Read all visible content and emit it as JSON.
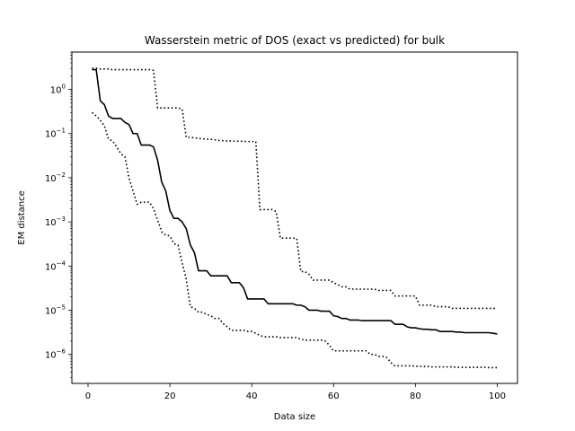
{
  "chart_data": {
    "type": "line",
    "title": "Wasserstein metric of DOS (exact vs predicted) for bulk",
    "xlabel": "Data size",
    "ylabel": "EM distance",
    "xlim": [
      -3.95,
      104.95
    ],
    "ylim": [
      2.2e-07,
      7.0
    ],
    "yscale": "log",
    "xticks": [
      0,
      20,
      40,
      60,
      80,
      100
    ],
    "xtick_labels": [
      "0",
      "20",
      "40",
      "60",
      "80",
      "100"
    ],
    "yticks": [
      1e-06,
      1e-05,
      0.0001,
      0.001,
      0.01,
      0.1,
      1.0
    ],
    "ytick_base": "10",
    "ytick_exponents": [
      "−6",
      "−5",
      "−4",
      "−3",
      "−2",
      "−1",
      "0"
    ],
    "grid": false,
    "legend": "none",
    "series": [
      {
        "style": "solid",
        "color": "#000000",
        "x": [
          1,
          2,
          3,
          4,
          5,
          6,
          7,
          8,
          9,
          10,
          11,
          12,
          13,
          14,
          15,
          16,
          17,
          18,
          19,
          20,
          21,
          22,
          23,
          24,
          25,
          26,
          27,
          28,
          29,
          30,
          31,
          32,
          33,
          34,
          35,
          36,
          37,
          38,
          39,
          40,
          41,
          42,
          43,
          44,
          45,
          46,
          47,
          48,
          49,
          50,
          51,
          52,
          53,
          54,
          55,
          56,
          57,
          58,
          59,
          60,
          61,
          62,
          63,
          64,
          65,
          66,
          67,
          68,
          69,
          70,
          71,
          72,
          73,
          74,
          75,
          76,
          77,
          78,
          79,
          80,
          81,
          82,
          83,
          84,
          85,
          86,
          87,
          88,
          89,
          90,
          91,
          92,
          93,
          94,
          95,
          96,
          97,
          98,
          99,
          100
        ],
        "y": [
          2.8,
          2.8,
          0.55,
          0.45,
          0.25,
          0.22,
          0.22,
          0.22,
          0.18,
          0.16,
          0.1,
          0.1,
          0.055,
          0.055,
          0.055,
          0.05,
          0.025,
          0.008,
          0.005,
          0.0018,
          0.0012,
          0.0012,
          0.001,
          0.0007,
          0.0003,
          0.0002,
          7.8e-05,
          7.8e-05,
          7.8e-05,
          6e-05,
          6e-05,
          6e-05,
          6e-05,
          6e-05,
          4.2e-05,
          4.2e-05,
          4.2e-05,
          3.2e-05,
          1.8e-05,
          1.8e-05,
          1.8e-05,
          1.8e-05,
          1.8e-05,
          1.4e-05,
          1.4e-05,
          1.4e-05,
          1.4e-05,
          1.4e-05,
          1.4e-05,
          1.4e-05,
          1.3e-05,
          1.3e-05,
          1.2e-05,
          1e-05,
          1e-05,
          1e-05,
          9.5e-06,
          9.5e-06,
          9.5e-06,
          7.5e-06,
          7.2e-06,
          6.5e-06,
          6.5e-06,
          6e-06,
          6e-06,
          6e-06,
          5.8e-06,
          5.8e-06,
          5.8e-06,
          5.8e-06,
          5.8e-06,
          5.8e-06,
          5.8e-06,
          5.8e-06,
          4.8e-06,
          4.8e-06,
          4.8e-06,
          4.2e-06,
          4e-06,
          4e-06,
          3.8e-06,
          3.7e-06,
          3.7e-06,
          3.6e-06,
          3.6e-06,
          3.3e-06,
          3.3e-06,
          3.3e-06,
          3.3e-06,
          3.2e-06,
          3.2e-06,
          3.1e-06,
          3.1e-06,
          3.1e-06,
          3.1e-06,
          3.1e-06,
          3.1e-06,
          3.1e-06,
          3e-06,
          2.9e-06
        ]
      },
      {
        "style": "dotted",
        "color": "#000000",
        "x": [
          1,
          2,
          3,
          4,
          5,
          6,
          7,
          8,
          9,
          10,
          11,
          12,
          13,
          14,
          15,
          16,
          17,
          18,
          19,
          20,
          21,
          22,
          23,
          24,
          25,
          26,
          27,
          28,
          29,
          30,
          31,
          32,
          33,
          34,
          35,
          36,
          37,
          38,
          39,
          40,
          41,
          42,
          43,
          44,
          45,
          46,
          47,
          48,
          49,
          50,
          51,
          52,
          53,
          54,
          55,
          56,
          57,
          58,
          59,
          60,
          61,
          62,
          63,
          64,
          65,
          66,
          67,
          68,
          69,
          70,
          71,
          72,
          73,
          74,
          75,
          76,
          77,
          78,
          79,
          80,
          81,
          82,
          83,
          84,
          85,
          86,
          87,
          88,
          89,
          90,
          91,
          92,
          93,
          94,
          95,
          96,
          97,
          98,
          99,
          100
        ],
        "y": [
          3.0,
          3.0,
          2.9,
          2.9,
          2.9,
          2.8,
          2.8,
          2.8,
          2.8,
          2.8,
          2.8,
          2.8,
          2.8,
          2.8,
          2.8,
          2.7,
          0.38,
          0.38,
          0.38,
          0.38,
          0.38,
          0.38,
          0.36,
          0.082,
          0.082,
          0.08,
          0.078,
          0.076,
          0.075,
          0.074,
          0.072,
          0.07,
          0.069,
          0.068,
          0.068,
          0.067,
          0.067,
          0.067,
          0.066,
          0.066,
          0.066,
          0.0019,
          0.0019,
          0.0019,
          0.0019,
          0.0017,
          0.00043,
          0.00043,
          0.00043,
          0.00043,
          0.00042,
          7.5e-05,
          7.5e-05,
          6.5e-05,
          4.8e-05,
          4.8e-05,
          4.8e-05,
          4.8e-05,
          4.8e-05,
          4.2e-05,
          3.8e-05,
          3.4e-05,
          3.4e-05,
          3e-05,
          3e-05,
          3e-05,
          3e-05,
          3e-05,
          3e-05,
          3e-05,
          2.8e-05,
          2.8e-05,
          2.8e-05,
          2.8e-05,
          2.1e-05,
          2.1e-05,
          2.1e-05,
          2.1e-05,
          2.1e-05,
          2.1e-05,
          1.3e-05,
          1.3e-05,
          1.3e-05,
          1.3e-05,
          1.2e-05,
          1.2e-05,
          1.2e-05,
          1.2e-05,
          1.1e-05,
          1.1e-05,
          1.1e-05,
          1.1e-05,
          1.1e-05,
          1.1e-05,
          1.1e-05,
          1.1e-05,
          1.1e-05,
          1.1e-05,
          1.1e-05,
          1.1e-05
        ]
      },
      {
        "style": "dotted",
        "color": "#000000",
        "x": [
          1,
          2,
          3,
          4,
          5,
          6,
          7,
          8,
          9,
          10,
          11,
          12,
          13,
          14,
          15,
          16,
          17,
          18,
          19,
          20,
          21,
          22,
          23,
          24,
          25,
          26,
          27,
          28,
          29,
          30,
          31,
          32,
          33,
          34,
          35,
          36,
          37,
          38,
          39,
          40,
          41,
          42,
          43,
          44,
          45,
          46,
          47,
          48,
          49,
          50,
          51,
          52,
          53,
          54,
          55,
          56,
          57,
          58,
          59,
          60,
          61,
          62,
          63,
          64,
          65,
          66,
          67,
          68,
          69,
          70,
          71,
          72,
          73,
          74,
          75,
          76,
          77,
          78,
          79,
          80,
          81,
          82,
          83,
          84,
          85,
          86,
          87,
          88,
          89,
          90,
          91,
          92,
          93,
          94,
          95,
          96,
          97,
          98,
          99,
          100
        ],
        "y": [
          0.3,
          0.25,
          0.2,
          0.15,
          0.075,
          0.068,
          0.05,
          0.035,
          0.03,
          0.01,
          0.005,
          0.0025,
          0.0028,
          0.0028,
          0.0028,
          0.002,
          0.0011,
          0.0006,
          0.0005,
          0.00048,
          0.00032,
          0.0003,
          0.00012,
          5e-05,
          1.2e-05,
          1.1e-05,
          9e-06,
          9e-06,
          8e-06,
          7.5e-06,
          6.5e-06,
          6.5e-06,
          5e-06,
          4.2e-06,
          3.5e-06,
          3.5e-06,
          3.5e-06,
          3.5e-06,
          3.3e-06,
          3.3e-06,
          3e-06,
          2.7e-06,
          2.5e-06,
          2.5e-06,
          2.5e-06,
          2.5e-06,
          2.4e-06,
          2.4e-06,
          2.4e-06,
          2.4e-06,
          2.4e-06,
          2.2e-06,
          2.1e-06,
          2.1e-06,
          2.1e-06,
          2.1e-06,
          2.1e-06,
          2e-06,
          1.6e-06,
          1.2e-06,
          1.2e-06,
          1.2e-06,
          1.2e-06,
          1.2e-06,
          1.2e-06,
          1.2e-06,
          1.2e-06,
          1.2e-06,
          1e-06,
          1e-06,
          9e-07,
          9e-07,
          8.5e-07,
          6.5e-07,
          5.5e-07,
          5.5e-07,
          5.5e-07,
          5.5e-07,
          5.5e-07,
          5.4e-07,
          5.4e-07,
          5.3e-07,
          5.3e-07,
          5.2e-07,
          5.2e-07,
          5.2e-07,
          5.2e-07,
          5.2e-07,
          5.2e-07,
          5.1e-07,
          5.1e-07,
          5.1e-07,
          5.1e-07,
          5.1e-07,
          5.1e-07,
          5.1e-07,
          5.1e-07,
          5e-07,
          5e-07,
          5e-07
        ]
      }
    ]
  }
}
